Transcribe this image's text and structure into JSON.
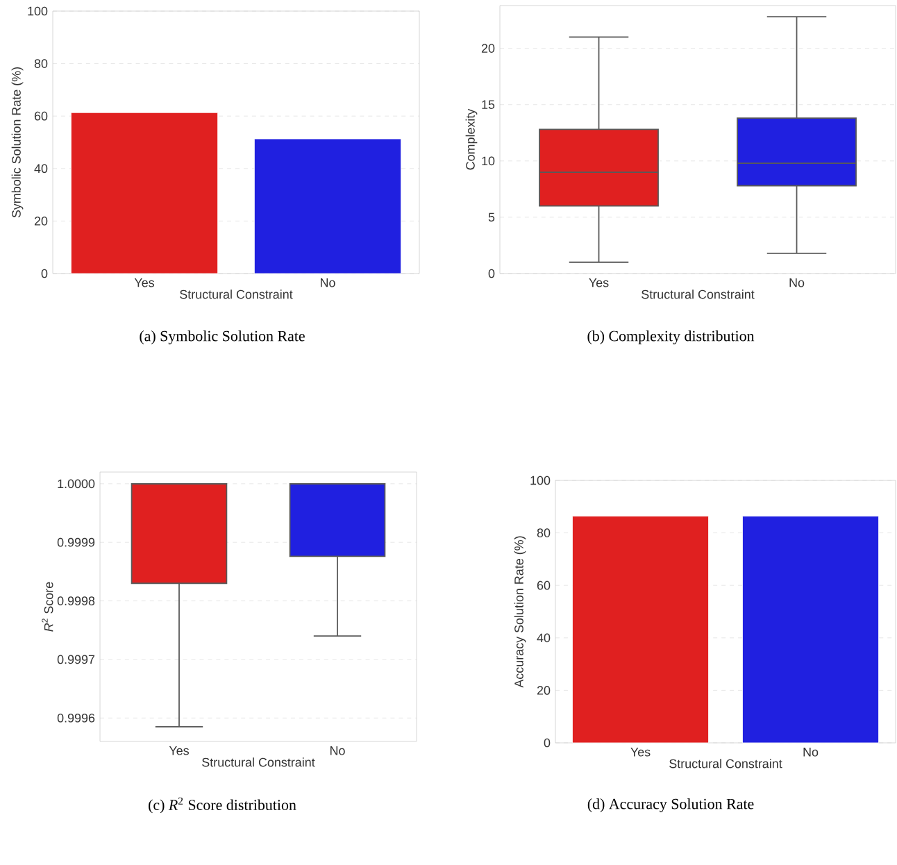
{
  "chart_data": [
    {
      "type": "bar",
      "categories": [
        "Yes",
        "No"
      ],
      "values": [
        61.3,
        51.3
      ],
      "colors": [
        "#e02020",
        "#2020e0"
      ],
      "xlabel": "Structural Constraint",
      "ylabel": "Symbolic Solution Rate (%)",
      "ylim": [
        0,
        100
      ],
      "yticks": [
        0,
        20,
        40,
        60,
        80,
        100
      ],
      "grid": "y",
      "annotations": [
        "(a) Symbolic Solution Rate"
      ]
    },
    {
      "type": "box",
      "categories": [
        "Yes",
        "No"
      ],
      "boxes": [
        {
          "low": 1,
          "q1": 6,
          "median": 9,
          "q3": 12.8,
          "high": 21
        },
        {
          "low": 1.8,
          "q1": 7.8,
          "median": 9.8,
          "q3": 13.8,
          "high": 22.8
        }
      ],
      "colors": [
        "#e02020",
        "#2020e0"
      ],
      "xlabel": "Structural Constraint",
      "ylabel": "Complexity",
      "ylim": [
        0,
        23.8
      ],
      "yticks": [
        0,
        5,
        10,
        15,
        20
      ],
      "grid": "y",
      "annotations": [
        "(b) Complexity distribution"
      ]
    },
    {
      "type": "box",
      "categories": [
        "Yes",
        "No"
      ],
      "boxes": [
        {
          "low": 0.999585,
          "q1": 0.99983,
          "median": 1.0,
          "q3": 1.0,
          "high": 1.0
        },
        {
          "low": 0.99974,
          "q1": 0.999876,
          "median": 1.0,
          "q3": 1.0,
          "high": 1.0
        }
      ],
      "colors": [
        "#e02020",
        "#2020e0"
      ],
      "xlabel": "Structural Constraint",
      "ylabel": "*R*$^{2}$ Score",
      "ylim": [
        0.99956,
        1.00002
      ],
      "yticks": [
        {
          "value": 0.9996,
          "label": "0.9996"
        },
        {
          "value": 0.9997,
          "label": "0.9997"
        },
        {
          "value": 0.9998,
          "label": "0.9998"
        },
        {
          "value": 0.9999,
          "label": "0.9999"
        },
        {
          "value": 1.0,
          "label": "1.0000"
        }
      ],
      "grid": "y",
      "annotations": [
        "(c) *R*$^{2}$ Score distribution"
      ]
    },
    {
      "type": "bar",
      "categories": [
        "Yes",
        "No"
      ],
      "values": [
        86.4,
        86.4
      ],
      "colors": [
        "#e02020",
        "#2020e0"
      ],
      "xlabel": "Structural Constraint",
      "ylabel": "Accuracy Solution Rate (%)",
      "ylim": [
        0,
        100
      ],
      "yticks": [
        0,
        20,
        40,
        60,
        80,
        100
      ],
      "grid": "y",
      "annotations": [
        "(d) Accuracy Solution Rate"
      ]
    }
  ]
}
